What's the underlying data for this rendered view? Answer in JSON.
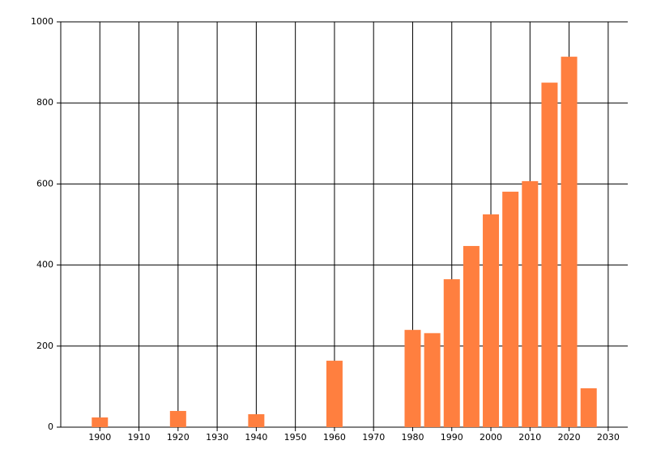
{
  "chart_data": {
    "type": "bar",
    "x": [
      1900,
      1920,
      1940,
      1960,
      1980,
      1985,
      1990,
      1995,
      2000,
      2005,
      2010,
      2015,
      2020,
      2025
    ],
    "values": [
      24,
      40,
      32,
      164,
      240,
      232,
      365,
      447,
      525,
      581,
      607,
      850,
      914,
      96
    ],
    "color": "#ff7f3f",
    "xlim": [
      1890,
      2035
    ],
    "xticks": [
      1900,
      1910,
      1920,
      1930,
      1940,
      1950,
      1960,
      1970,
      1980,
      1990,
      2000,
      2010,
      2020,
      2030
    ],
    "ylim": [
      0,
      1000
    ],
    "yticks": [
      0,
      200,
      400,
      600,
      800,
      1000
    ],
    "grid": true
  }
}
